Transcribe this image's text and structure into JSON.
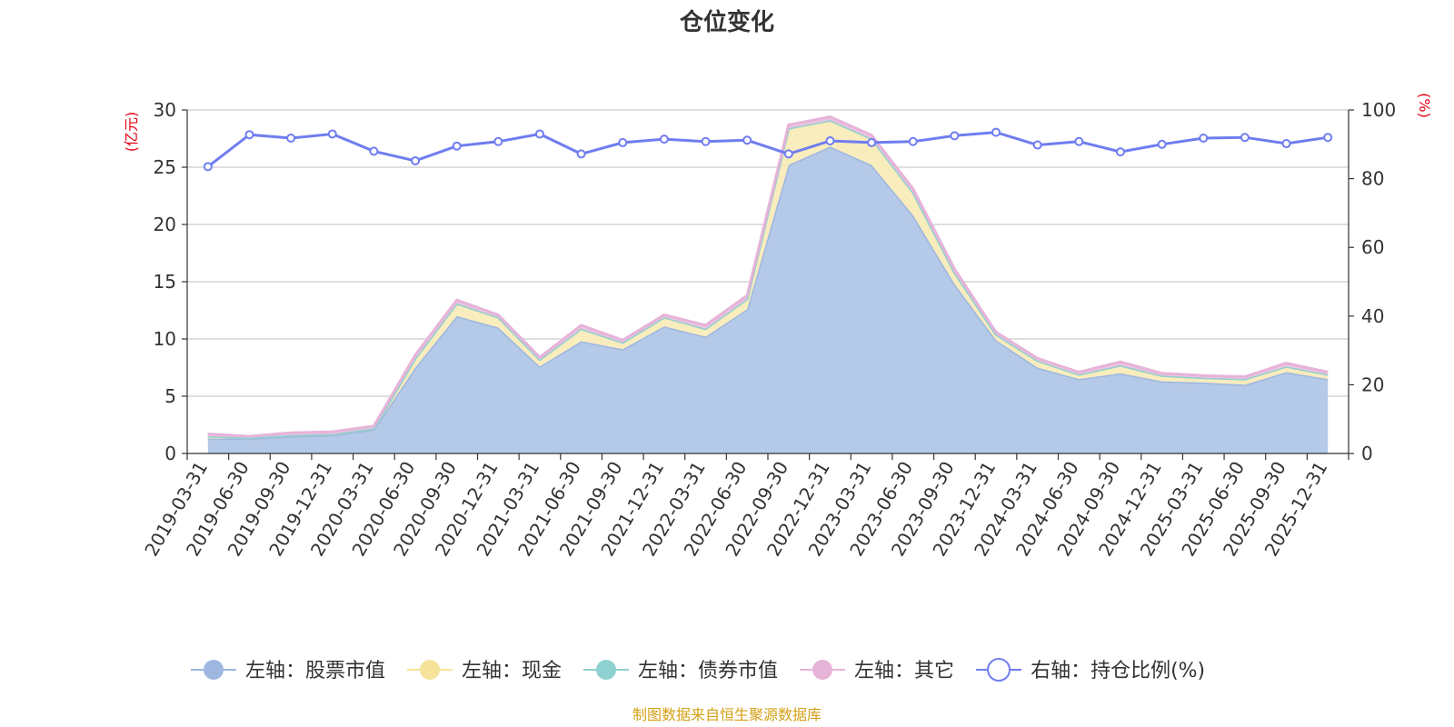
{
  "chart_data": {
    "type": "area",
    "title": "仓位变化",
    "left_unit": "(亿元)",
    "right_unit": "(%)",
    "source_note": "制图数据来自恒生聚源数据库",
    "categories": [
      "2019-03-31",
      "2019-06-30",
      "2019-09-30",
      "2019-12-31",
      "2020-03-31",
      "2020-06-30",
      "2020-09-30",
      "2020-12-31",
      "2021-03-31",
      "2021-06-30",
      "2021-09-30",
      "2021-12-31",
      "2022-03-31",
      "2022-06-30",
      "2022-09-30",
      "2022-12-31",
      "2023-03-31",
      "2023-06-30",
      "2023-09-30",
      "2023-12-31",
      "2024-03-31",
      "2024-06-30",
      "2024-09-30",
      "2024-12-31",
      "2025-03-31",
      "2025-06-30",
      "2025-09-30",
      "2025-12-31"
    ],
    "left_axis": {
      "min": 0,
      "max": 30,
      "ticks": [
        0,
        5,
        10,
        15,
        20,
        25,
        30
      ]
    },
    "right_axis": {
      "min": 0,
      "max": 100,
      "ticks": [
        0,
        20,
        40,
        60,
        80,
        100
      ]
    },
    "series": [
      {
        "name": "左轴：股票市值",
        "axis": "left",
        "type": "area",
        "color": "#9db7e0",
        "fill": "#b5c9e8",
        "values": [
          1.3,
          1.3,
          1.5,
          1.6,
          2.1,
          7.5,
          12.0,
          11.0,
          7.6,
          9.8,
          9.1,
          11.1,
          10.2,
          12.6,
          25.2,
          26.8,
          25.2,
          20.8,
          14.8,
          9.9,
          7.5,
          6.5,
          7.0,
          6.3,
          6.2,
          6.0,
          7.1,
          6.5
        ]
      },
      {
        "name": "左轴：现金",
        "axis": "left",
        "type": "area",
        "color": "#f5e39a",
        "fill": "#f9ecbd",
        "values": [
          0.2,
          0.1,
          0.1,
          0.1,
          0.1,
          0.8,
          1.1,
          0.9,
          0.6,
          1.1,
          0.6,
          0.8,
          0.7,
          0.9,
          3.2,
          2.3,
          2.3,
          2.0,
          1.0,
          0.5,
          0.6,
          0.4,
          0.7,
          0.5,
          0.4,
          0.5,
          0.5,
          0.4
        ]
      },
      {
        "name": "左轴：债券市值",
        "axis": "left",
        "type": "area",
        "color": "#8fd0d0",
        "fill": "#a6dada",
        "values": [
          0,
          0,
          0,
          0,
          0,
          0,
          0,
          0,
          0,
          0,
          0,
          0,
          0,
          0,
          0,
          0,
          0,
          0,
          0,
          0,
          0,
          0,
          0,
          0,
          0,
          0,
          0,
          0
        ]
      },
      {
        "name": "左轴：其它",
        "axis": "left",
        "type": "area",
        "color": "#e6b3d9",
        "fill": "#ecc4e0",
        "values": [
          0.2,
          0.1,
          0.2,
          0.2,
          0.2,
          0.3,
          0.3,
          0.2,
          0.2,
          0.3,
          0.2,
          0.2,
          0.3,
          0.3,
          0.3,
          0.3,
          0.3,
          0.3,
          0.3,
          0.2,
          0.2,
          0.2,
          0.3,
          0.2,
          0.2,
          0.2,
          0.3,
          0.2
        ]
      },
      {
        "name": "右轴：持仓比例(%)",
        "axis": "right",
        "type": "line",
        "color": "#6f7df0",
        "values": [
          83.5,
          92.8,
          91.8,
          93.0,
          88.0,
          85.2,
          89.5,
          90.8,
          93.0,
          87.2,
          90.5,
          91.5,
          90.8,
          91.2,
          87.2,
          91.0,
          90.5,
          90.8,
          92.5,
          93.5,
          89.8,
          90.8,
          87.8,
          90.0,
          91.8,
          92.0,
          90.2,
          92.0
        ]
      }
    ]
  }
}
